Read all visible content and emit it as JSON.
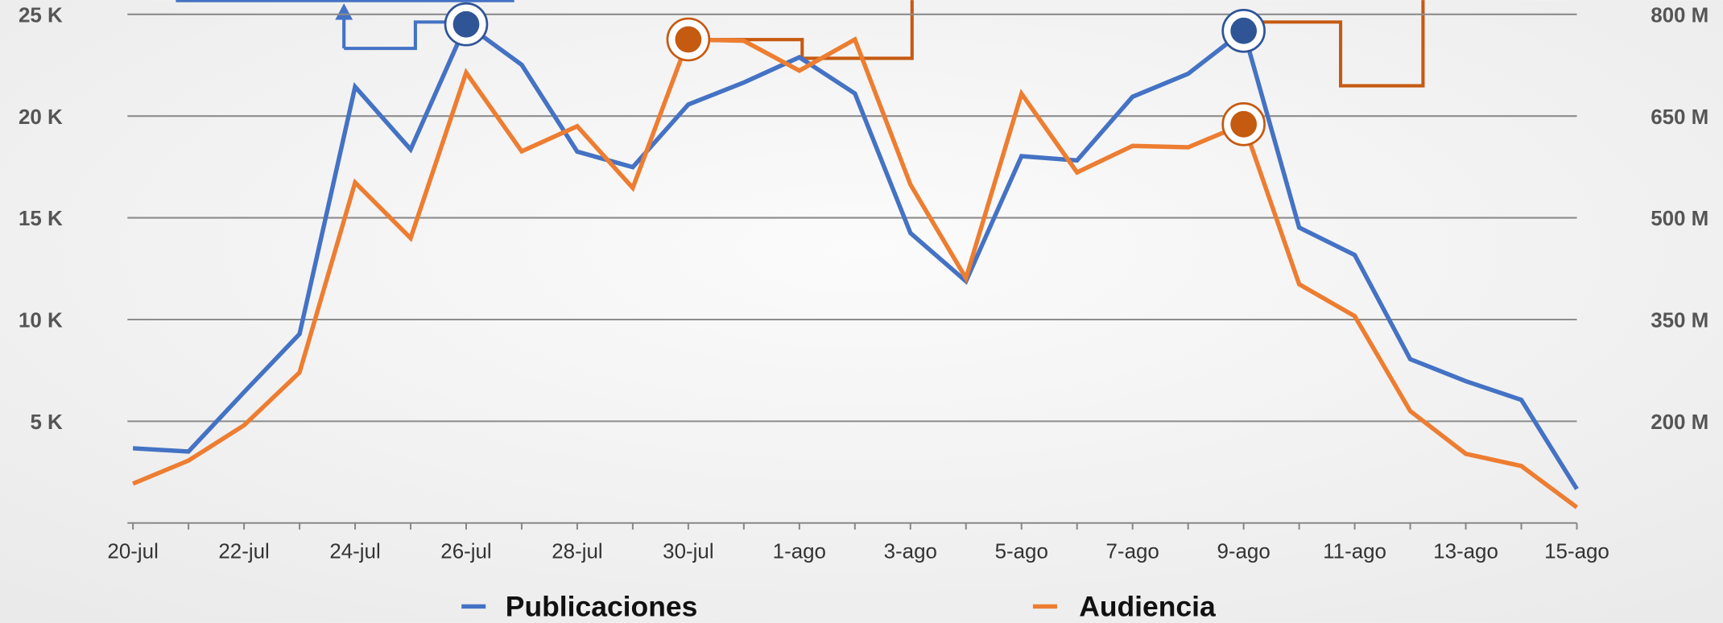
{
  "chart_data": {
    "type": "line",
    "categories": [
      "20-jul",
      null,
      "22-jul",
      null,
      "24-jul",
      null,
      "26-jul",
      null,
      "28-jul",
      null,
      "30-jul",
      null,
      "1-ago",
      null,
      "3-ago",
      null,
      "5-ago",
      null,
      "7-ago",
      null,
      "9-ago",
      null,
      "11-ago",
      null,
      "13-ago",
      null,
      "15-ago"
    ],
    "series": [
      {
        "name": "Publicaciones",
        "color": "#4472c4",
        "highlight": [
          6,
          20
        ],
        "values": [
          3670,
          3510,
          6430,
          9290,
          21440,
          18360,
          24510,
          22520,
          18250,
          17490,
          20570,
          21650,
          22890,
          21110,
          14250,
          11880,
          18030,
          17820,
          20950,
          22080,
          24190,
          14520,
          13170,
          8050,
          6970,
          6050,
          1670
        ]
      },
      {
        "name": "Audiencia",
        "color": "#ed7d31",
        "axis": "y2",
        "highlight": [
          10,
          20
        ],
        "values": [
          108000000,
          142000000,
          194000000,
          272000000,
          552000000,
          470000000,
          714000000,
          598000000,
          635000000,
          544000000,
          763000000,
          761000000,
          717000000,
          763000000,
          549000000,
          411000000,
          683000000,
          567000000,
          606000000,
          604000000,
          638000000,
          402000000,
          355000000,
          215000000,
          152000000,
          134000000,
          73000000
        ]
      }
    ],
    "ylim": [
      0,
      25000
    ],
    "yticks": [
      {
        "value": 5000,
        "label": "5 K"
      },
      {
        "value": 10000,
        "label": "10 K"
      },
      {
        "value": 15000,
        "label": "15 K"
      },
      {
        "value": 20000,
        "label": "20 K"
      },
      {
        "value": 25000,
        "label": "25 K"
      }
    ],
    "y2lim": [
      50000000,
      800000000
    ],
    "y2ticks": [
      {
        "value": 200000000,
        "label": "200 M"
      },
      {
        "value": 350000000,
        "label": "350 M"
      },
      {
        "value": 500000000,
        "label": "500 M"
      },
      {
        "value": 650000000,
        "label": "650 M"
      },
      {
        "value": 800000000,
        "label": "800 M"
      }
    ],
    "grid": true,
    "legend": "bottom"
  }
}
